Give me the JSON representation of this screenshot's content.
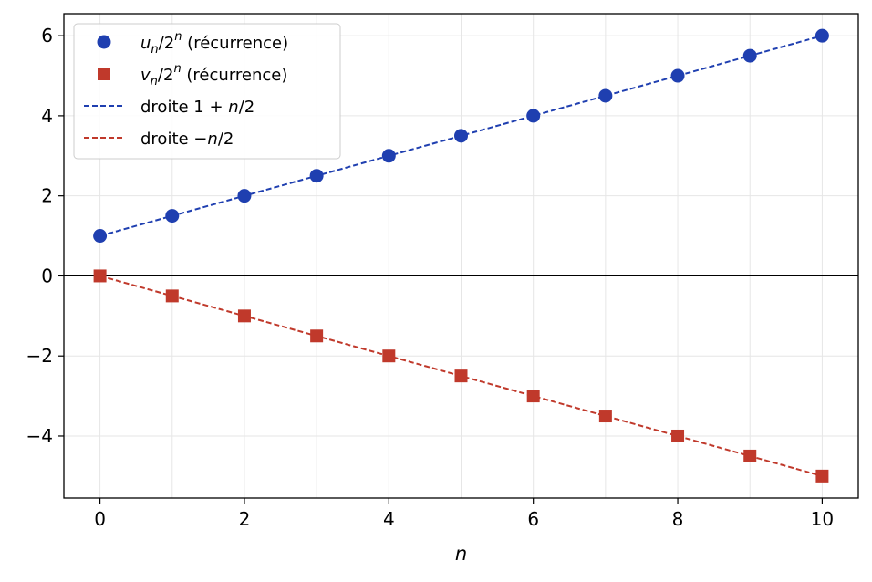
{
  "chart_data": {
    "type": "scatter",
    "xlabel": "n",
    "ylabel": "",
    "title": "",
    "xlim": [
      -0.5,
      10.5
    ],
    "ylim": [
      -5.55,
      6.55
    ],
    "xticks": [
      0,
      2,
      4,
      6,
      8,
      10
    ],
    "yticks": [
      6,
      4,
      2,
      0,
      -2,
      -4
    ],
    "ytick_labels": [
      "6",
      "4",
      "2",
      "0",
      "−2",
      "−4"
    ],
    "grid": true,
    "zero_line": true,
    "legend_position": "top-left",
    "x": [
      0,
      1,
      2,
      3,
      4,
      5,
      6,
      7,
      8,
      9,
      10
    ],
    "series": [
      {
        "name": "u_n/2^n (récurrence)",
        "label_parts": {
          "a": "u",
          "sub": "n",
          "b": "/2",
          "sup": "n",
          "c": " (récurrence)"
        },
        "kind": "scatter",
        "marker": "circle",
        "color": "#1f3fb0",
        "values": [
          1.0,
          1.5,
          2.0,
          2.5,
          3.0,
          3.5,
          4.0,
          4.5,
          5.0,
          5.5,
          6.0
        ]
      },
      {
        "name": "v_n/2^n (récurrence)",
        "label_parts": {
          "a": "v",
          "sub": "n",
          "b": "/2",
          "sup": "n",
          "c": " (récurrence)"
        },
        "kind": "scatter",
        "marker": "square",
        "color": "#c0392b",
        "values": [
          0.0,
          -0.5,
          -1.0,
          -1.5,
          -2.0,
          -2.5,
          -3.0,
          -3.5,
          -4.0,
          -4.5,
          -5.0
        ]
      },
      {
        "name": "droite 1 + n/2",
        "label_parts": {
          "a": "droite 1 + ",
          "it": "n",
          "b": "/2"
        },
        "kind": "line",
        "linestyle": "dashed",
        "color": "#1f3fb0",
        "values": [
          1.0,
          1.5,
          2.0,
          2.5,
          3.0,
          3.5,
          4.0,
          4.5,
          5.0,
          5.5,
          6.0
        ]
      },
      {
        "name": "droite −n/2",
        "label_parts": {
          "a": "droite −",
          "it": "n",
          "b": "/2"
        },
        "kind": "line",
        "linestyle": "dashed",
        "color": "#c0392b",
        "values": [
          0.0,
          -0.5,
          -1.0,
          -1.5,
          -2.0,
          -2.5,
          -3.0,
          -3.5,
          -4.0,
          -4.5,
          -5.0
        ]
      }
    ]
  }
}
